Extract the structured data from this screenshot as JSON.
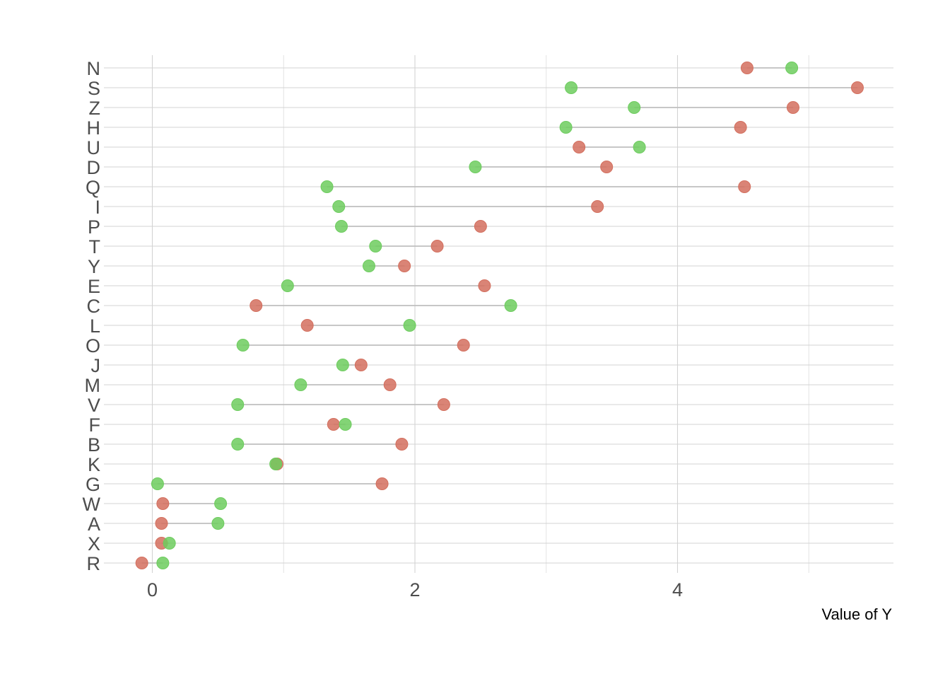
{
  "chart_data": {
    "type": "scatter",
    "subtype": "dumbbell",
    "title": "",
    "xlabel": "Value of Y",
    "ylabel": "",
    "xlim": [
      -0.34,
      5.65
    ],
    "x_ticks": [
      0,
      2,
      4
    ],
    "x_tick_labels": [
      "0",
      "2",
      "4"
    ],
    "grid": true,
    "legend": "none",
    "categories": [
      "N",
      "S",
      "Z",
      "H",
      "U",
      "D",
      "Q",
      "I",
      "P",
      "T",
      "Y",
      "E",
      "C",
      "L",
      "O",
      "J",
      "M",
      "V",
      "F",
      "B",
      "K",
      "G",
      "W",
      "A",
      "X",
      "R"
    ],
    "series": [
      {
        "color": "#d36f5e",
        "values": [
          4.53,
          5.37,
          4.88,
          4.48,
          3.25,
          3.46,
          4.51,
          3.39,
          2.5,
          2.17,
          1.92,
          2.53,
          0.79,
          1.18,
          2.37,
          1.59,
          1.81,
          2.22,
          1.38,
          1.9,
          0.95,
          1.75,
          0.08,
          0.07,
          0.07,
          -0.08
        ]
      },
      {
        "color": "#6dcc5e",
        "values": [
          4.87,
          3.19,
          3.67,
          3.15,
          3.71,
          2.46,
          1.33,
          1.42,
          1.44,
          1.7,
          1.65,
          1.03,
          2.73,
          1.96,
          0.69,
          1.45,
          1.13,
          0.65,
          1.47,
          0.65,
          0.94,
          0.04,
          0.52,
          0.5,
          0.13,
          0.08
        ]
      }
    ]
  }
}
